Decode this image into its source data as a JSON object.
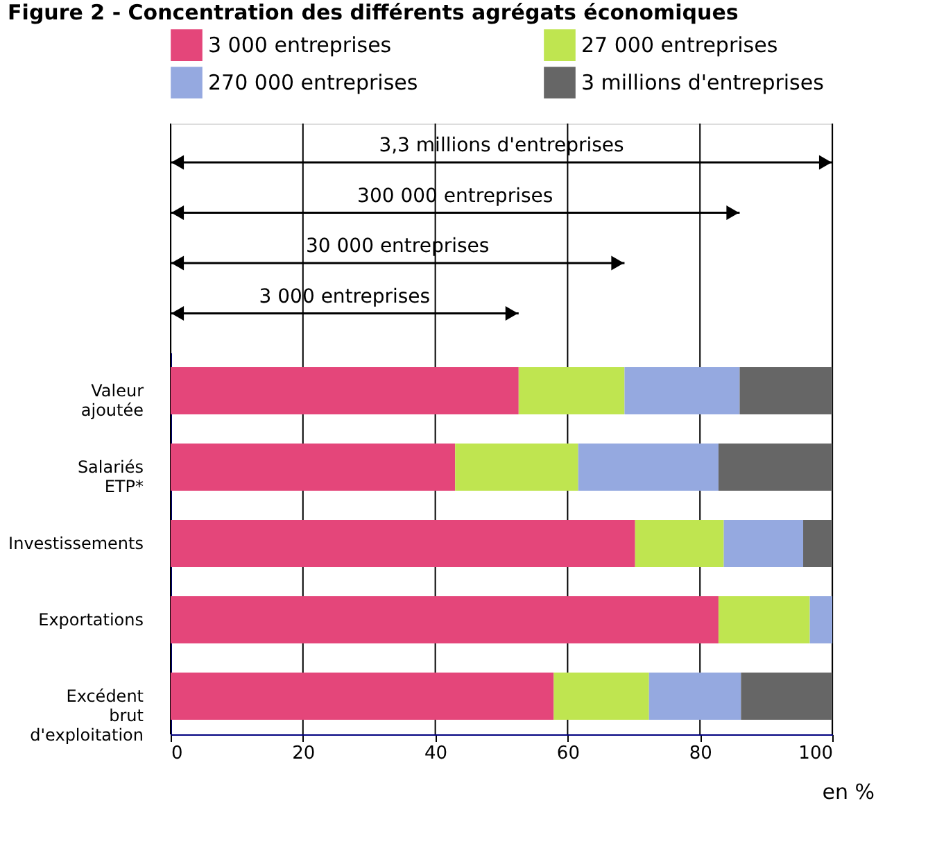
{
  "chart_data": {
    "type": "bar",
    "orientation": "horizontal",
    "stacked": true,
    "title": "Figure 2 - Concentration des différents agrégats économiques",
    "xlabel": "en %",
    "categories": [
      "Valeur\najoutée",
      "Salariés\nETP*",
      "Investissements",
      "Exportations",
      "Excédent\nbrut\nd'exploitation"
    ],
    "series": [
      {
        "name": "3 000 entreprises",
        "color": "#e4467a",
        "values": [
          52.6,
          43.0,
          70.2,
          82.8,
          57.9
        ]
      },
      {
        "name": "27 000 entreprises",
        "color": "#bfe550",
        "values": [
          16.0,
          18.6,
          13.4,
          13.8,
          14.4
        ]
      },
      {
        "name": "270 000 entreprises",
        "color": "#95a9e0",
        "values": [
          17.4,
          21.2,
          12.0,
          3.4,
          13.9
        ]
      },
      {
        "name": "3 millions d'entreprises",
        "color": "#666666",
        "values": [
          14.0,
          17.2,
          4.4,
          0,
          13.8
        ]
      }
    ],
    "annotations": [
      "3,3 millions d'entreprises",
      "300 000 entreprises",
      "30 000 entreprises",
      "3 000 entreprises"
    ],
    "xlim": [
      0,
      100
    ],
    "xticks": [
      0,
      20,
      40,
      60,
      80,
      100
    ],
    "grid": "x",
    "legend": "top"
  }
}
